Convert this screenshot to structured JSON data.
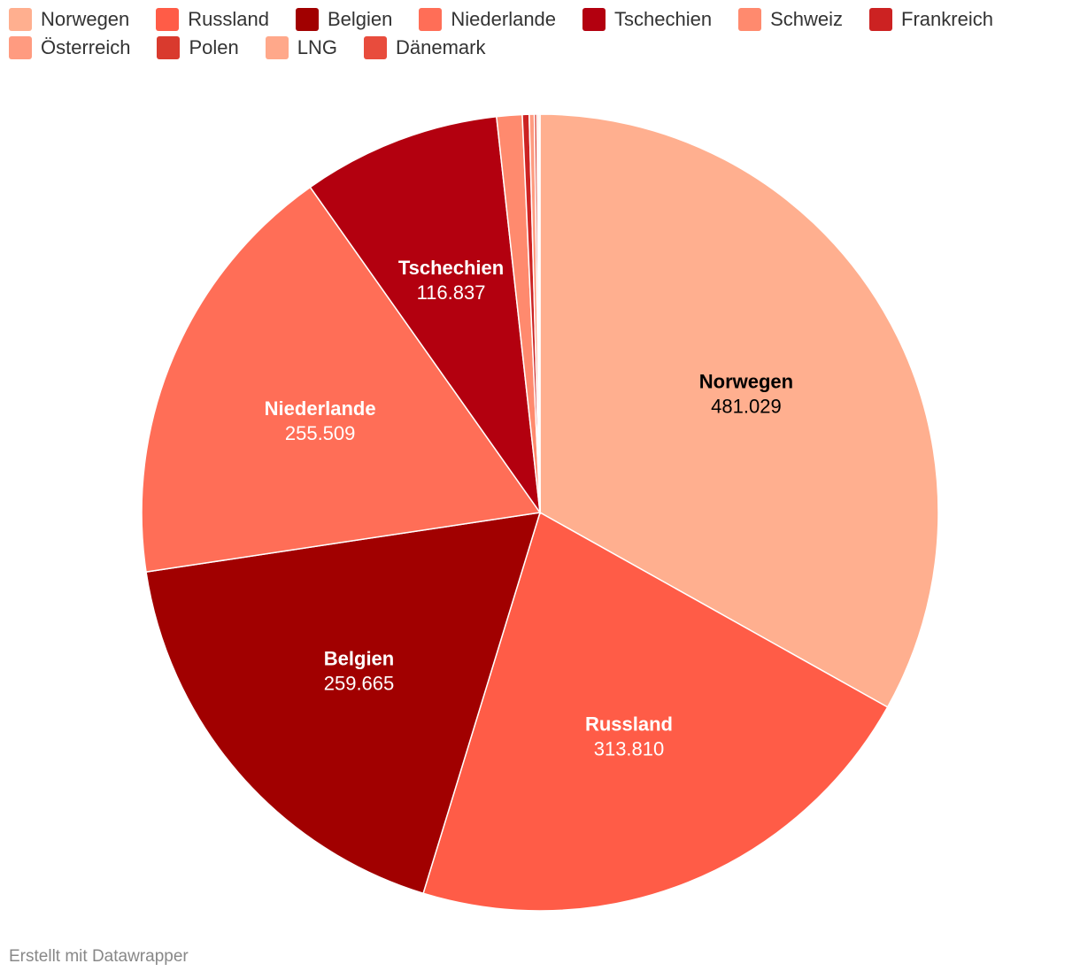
{
  "chart_data": {
    "type": "pie",
    "categories": [
      "Norwegen",
      "Russland",
      "Belgien",
      "Niederlande",
      "Tschechien",
      "Schweiz",
      "Frankreich",
      "Österreich",
      "Polen",
      "LNG",
      "Dänemark"
    ],
    "values": [
      481029,
      313810,
      259665,
      255509,
      116837,
      15000,
      4000,
      3000,
      1500,
      1000,
      800
    ],
    "value_labels": [
      "481.029",
      "313.810",
      "259.665",
      "255.509",
      "116.837",
      "",
      "",
      "",
      "",
      "",
      ""
    ],
    "colors": [
      "#ffaf8f",
      "#ff5c47",
      "#a10000",
      "#ff6e57",
      "#b3000f",
      "#ff8a6e",
      "#cc2222",
      "#ff9b80",
      "#d93a2e",
      "#ffa88a",
      "#e84c3d"
    ],
    "label_colors": [
      "#000000",
      "#ffffff",
      "#ffffff",
      "#ffffff",
      "#ffffff",
      "#ffffff",
      "#ffffff",
      "#ffffff",
      "#ffffff",
      "#ffffff",
      "#ffffff"
    ],
    "legend": {
      "placement": "top-left",
      "items": [
        "Norwegen",
        "Russland",
        "Belgien",
        "Niederlande",
        "Tschechien",
        "Schweiz",
        "Frankreich",
        "Österreich",
        "Polen",
        "LNG",
        "Dänemark"
      ]
    }
  },
  "footer": {
    "credit": "Erstellt mit Datawrapper"
  }
}
